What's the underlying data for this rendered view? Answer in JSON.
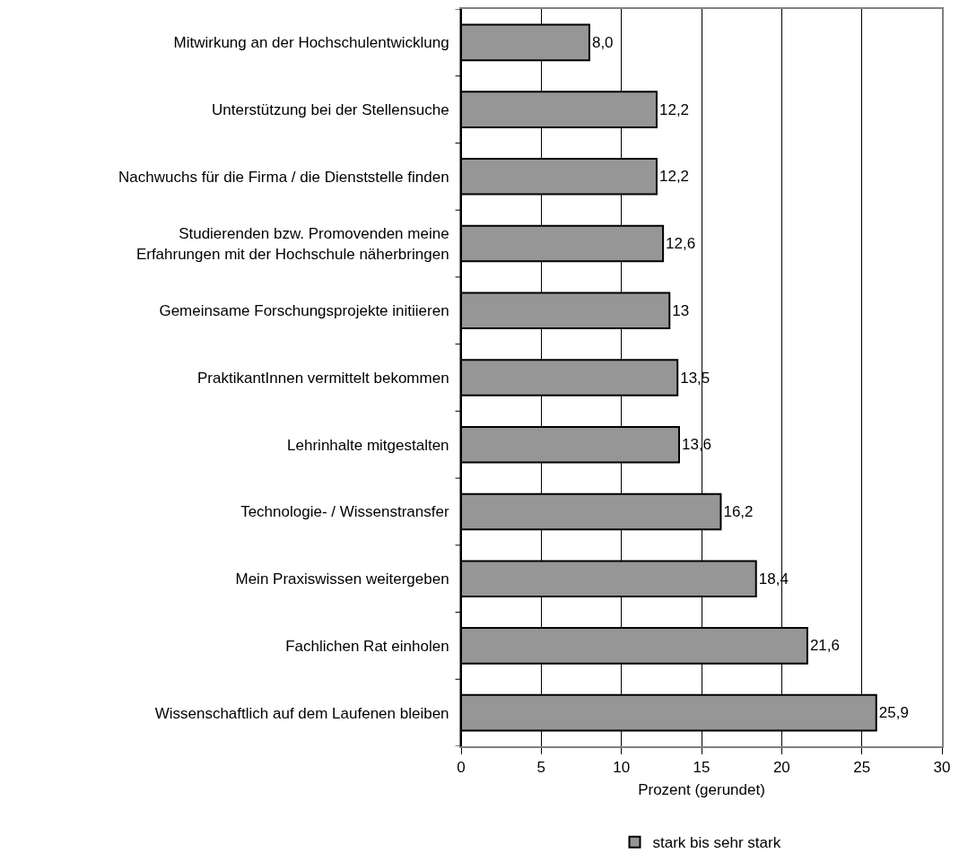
{
  "chart_data": {
    "type": "bar",
    "orientation": "horizontal",
    "categories": [
      "Mitwirkung an der Hochschulentwicklung",
      "Unterstützung bei der Stellensuche",
      "Nachwuchs für die Firma / die Dienststelle finden",
      "Studierenden bzw. Promovenden meine\nErfahrungen mit der Hochschule näherbringen",
      "Gemeinsame Forschungsprojekte initiieren",
      "PraktikantInnen vermittelt bekommen",
      "Lehrinhalte mitgestalten",
      "Technologie- / Wissenstransfer",
      "Mein Praxiswissen weitergeben",
      "Fachlichen Rat einholen",
      "Wissenschaftlich auf dem Laufenen bleiben"
    ],
    "series": [
      {
        "name": "stark bis sehr stark",
        "color": "#969696",
        "values": [
          8.0,
          12.2,
          12.2,
          12.6,
          13,
          13.5,
          13.6,
          16.2,
          18.4,
          21.6,
          25.9
        ],
        "value_labels": [
          "8,0",
          "12,2",
          "12,2",
          "12,6",
          "13",
          "13,5",
          "13,6",
          "16,2",
          "18,4",
          "21,6",
          "25,9"
        ]
      }
    ],
    "xlabel": "Prozent (gerundet)",
    "xlim": [
      0,
      30
    ],
    "xticks": [
      0,
      5,
      10,
      15,
      20,
      25,
      30
    ],
    "grid": "x",
    "legend": "bottom"
  }
}
